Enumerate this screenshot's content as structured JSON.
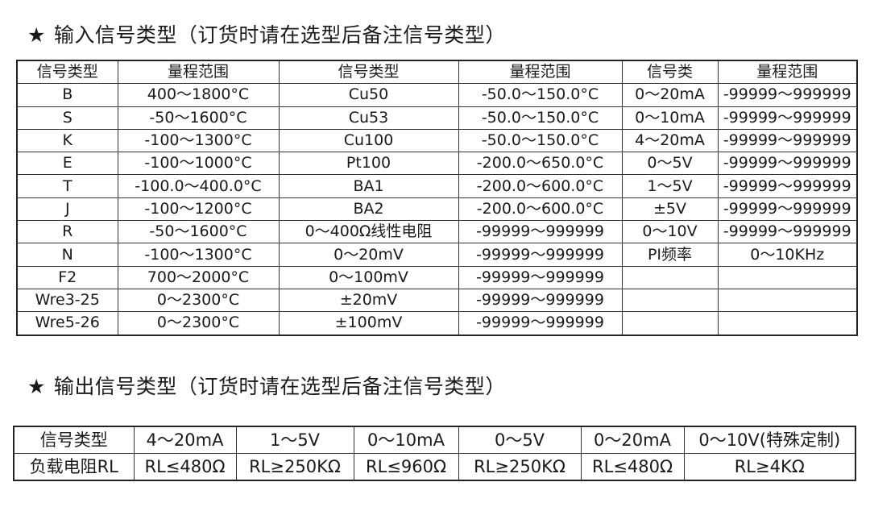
{
  "input_title": {
    "star": "★",
    "text": "输入信号类型（订货时请在选型后备注信号类型）"
  },
  "input_table": {
    "headers": [
      "信号类型",
      "量程范围",
      "信号类型",
      "量程范围",
      "信号类",
      "量程范围"
    ],
    "rows": [
      [
        "B",
        "400～1800°C",
        "Cu50",
        "-50.0～150.0°C",
        "0～20mA",
        "-99999～999999"
      ],
      [
        "S",
        "-50～1600°C",
        "Cu53",
        "-50.0～150.0°C",
        "0～10mA",
        "-99999～999999"
      ],
      [
        "K",
        "-100～1300°C",
        "Cu100",
        "-50.0～150.0°C",
        "4～20mA",
        "-99999～999999"
      ],
      [
        "E",
        "-100～1000°C",
        "Pt100",
        "-200.0～650.0°C",
        "0～5V",
        "-99999～999999"
      ],
      [
        "T",
        "-100.0～400.0°C",
        "BA1",
        "-200.0～600.0°C",
        "1～5V",
        "-99999～999999"
      ],
      [
        "J",
        "-100～1200°C",
        "BA2",
        "-200.0～600.0°C",
        "±5V",
        "-99999～999999"
      ],
      [
        "R",
        "-50～1600°C",
        "0～400Ω线性电阻",
        "-99999～999999",
        "0～10V",
        "-99999～999999"
      ],
      [
        "N",
        "-100～1300°C",
        "0～20mV",
        "-99999～999999",
        "PI频率",
        "0～10KHz"
      ],
      [
        "F2",
        "700～2000°C",
        "0～100mV",
        "-99999～999999",
        "",
        ""
      ],
      [
        "Wre3-25",
        "0～2300°C",
        "±20mV",
        "-99999～999999",
        "",
        ""
      ],
      [
        "Wre5-26",
        "0～2300°C",
        "±100mV",
        "-99999～999999",
        "",
        ""
      ]
    ]
  },
  "output_title": {
    "star": "★",
    "text": "输出信号类型（订货时请在选型后备注信号类型）"
  },
  "output_table": {
    "rows": [
      [
        "信号类型",
        "4～20mA",
        "1～5V",
        "0～10mA",
        "0～5V",
        "0～20mA",
        "0～10V(特殊定制)"
      ],
      [
        "负载电阻RL",
        "RL≤480Ω",
        "RL≥250KΩ",
        "RL≤960Ω",
        "RL≥250KΩ",
        "RL≤480Ω",
        "RL≥4KΩ"
      ]
    ]
  }
}
